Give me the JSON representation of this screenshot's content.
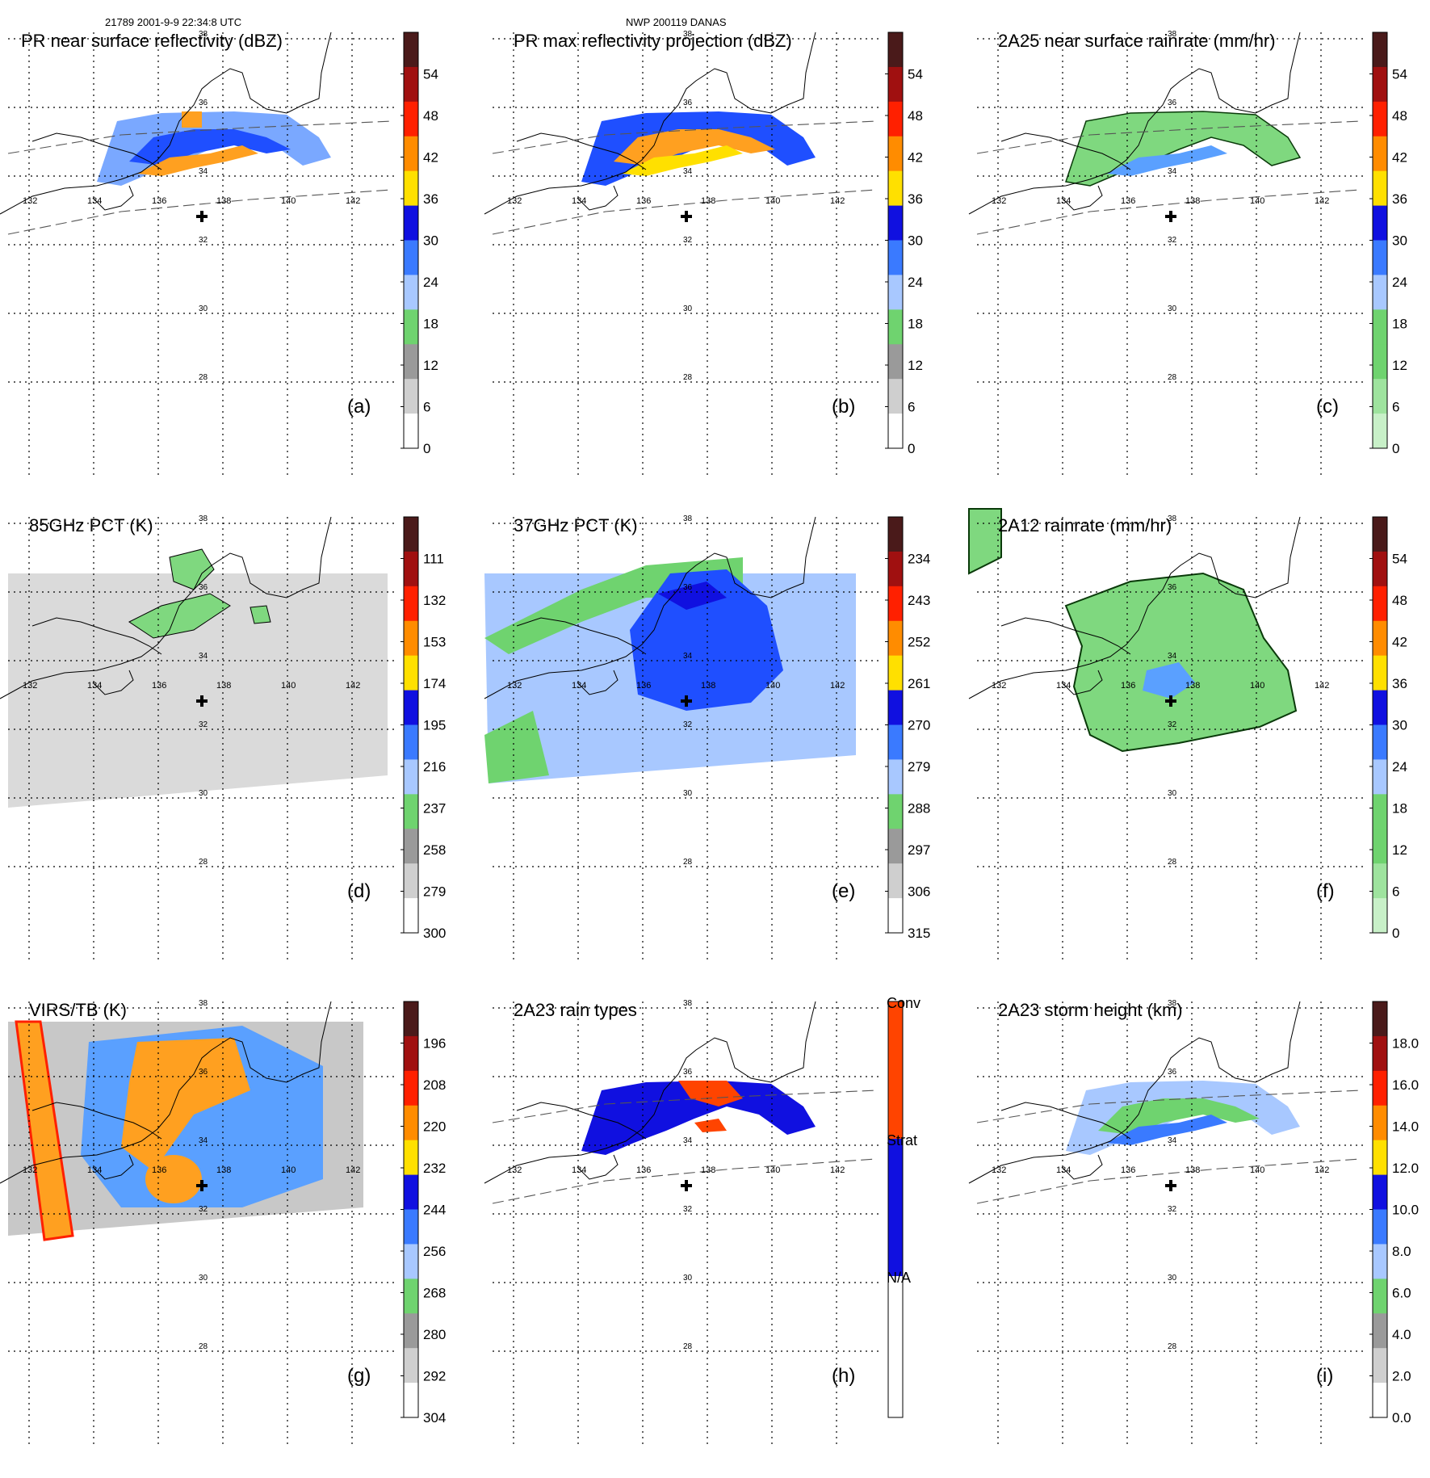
{
  "header": {
    "left": "21789 2001-9-9 22:34:8 UTC",
    "center": "NWP 200119 DANAS"
  },
  "map": {
    "lon_labels": [
      "132",
      "134",
      "136",
      "138",
      "140",
      "142"
    ],
    "lat_labels": [
      "38",
      "36",
      "34",
      "32",
      "30",
      "28"
    ]
  },
  "colors": {
    "white": "#ffffff",
    "light_gray": "#c8c8c8",
    "gray": "#8c8c8c",
    "green": "#7fd87f",
    "light_blue": "#b8cfff",
    "sky_blue": "#5aa0ff",
    "blue": "#1f4fff",
    "dark_blue": "#1010e0",
    "yellow": "#ffff00",
    "orange": "#ffa020",
    "red": "#ff2a00",
    "dark_red": "#a00000",
    "maroon": "#5a1a1a"
  },
  "panels": [
    {
      "id": "a",
      "title": "PR near surface reflectivity (dBZ)",
      "label": "(a)",
      "colorbar": {
        "ticks": [
          "54",
          "48",
          "42",
          "36",
          "30",
          "24",
          "18",
          "12",
          "6",
          "0"
        ]
      }
    },
    {
      "id": "b",
      "title": "PR max reflectivity projection (dBZ)",
      "label": "(b)",
      "colorbar": {
        "ticks": [
          "54",
          "48",
          "42",
          "36",
          "30",
          "24",
          "18",
          "12",
          "6",
          "0"
        ]
      }
    },
    {
      "id": "c",
      "title": "2A25 near surface rainrate (mm/hr)",
      "label": "(c)",
      "colorbar": {
        "ticks": [
          "54",
          "48",
          "42",
          "36",
          "30",
          "24",
          "18",
          "12",
          "6",
          "0"
        ]
      }
    },
    {
      "id": "d",
      "title": "85GHz PCT (K)",
      "label": "(d)",
      "colorbar": {
        "ticks": [
          "111",
          "132",
          "153",
          "174",
          "195",
          "216",
          "237",
          "258",
          "279",
          "300"
        ]
      }
    },
    {
      "id": "e",
      "title": "37GHz PCT (K)",
      "label": "(e)",
      "colorbar": {
        "ticks": [
          "234",
          "243",
          "252",
          "261",
          "270",
          "279",
          "288",
          "297",
          "306",
          "315"
        ]
      }
    },
    {
      "id": "f",
      "title": "2A12 rainrate (mm/hr)",
      "label": "(f)",
      "colorbar": {
        "ticks": [
          "54",
          "48",
          "42",
          "36",
          "30",
          "24",
          "18",
          "12",
          "6",
          "0"
        ]
      }
    },
    {
      "id": "g",
      "title": "VIRS/TB (K)",
      "label": "(g)",
      "colorbar": {
        "ticks": [
          "196",
          "208",
          "220",
          "232",
          "244",
          "256",
          "268",
          "280",
          "292",
          "304"
        ]
      }
    },
    {
      "id": "h",
      "title": "2A23 rain types",
      "label": "(h)",
      "colorbar": {
        "ticks": [
          "Conv",
          "Strat",
          "N/A"
        ]
      }
    },
    {
      "id": "i",
      "title": "2A23 storm height (km)",
      "label": "(i)",
      "colorbar": {
        "ticks": [
          "18.0",
          "16.0",
          "14.0",
          "12.0",
          "10.0",
          "8.0",
          "6.0",
          "4.0",
          "2.0",
          "0.0"
        ]
      }
    }
  ]
}
